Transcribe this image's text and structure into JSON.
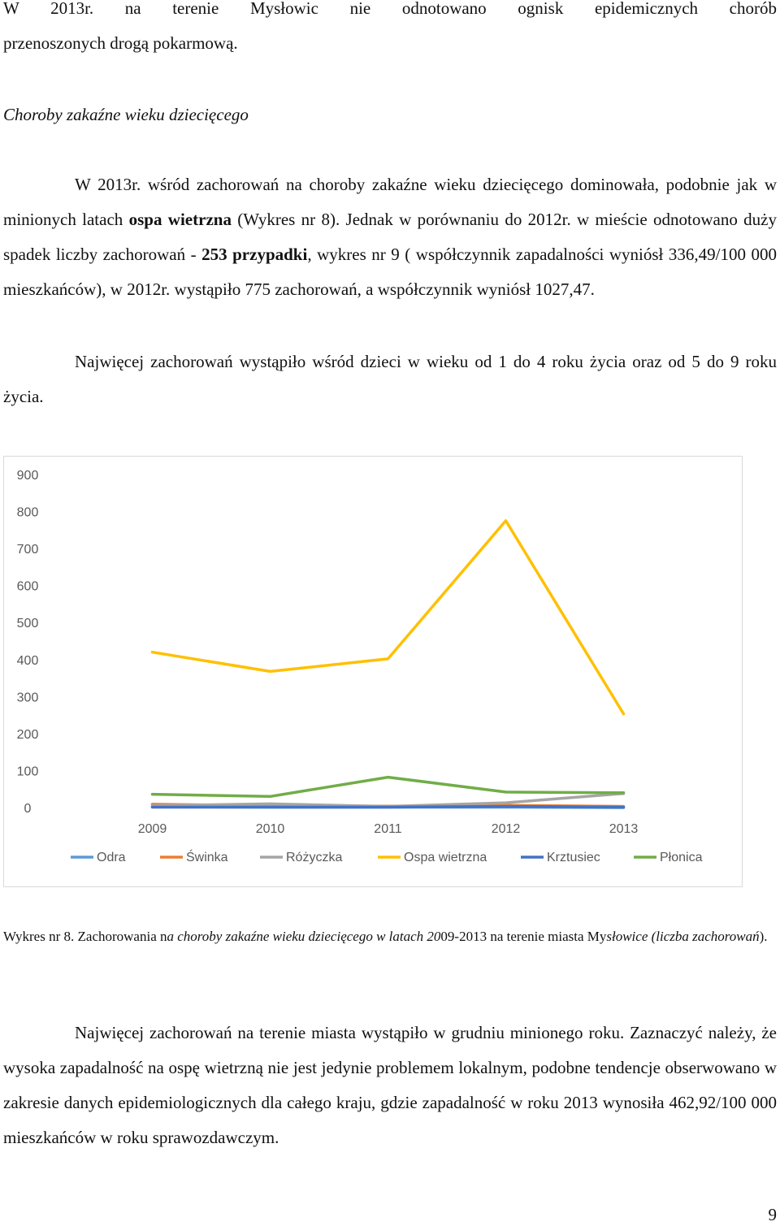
{
  "doc": {
    "p1_line1": "W  2013r.  na  terenie  Mysłowic  nie  odnotowano  ognisk  epidemicznych  chorób",
    "p1_line2": "przenoszonych drogą pokarmową.",
    "section_heading": "Choroby zakaźne wieku dziecięcego",
    "p2_seg1": "W 2013r. wśród zachorowań na choroby zakaźne wieku dziecięcego dominowała, podobnie jak w minionych latach ",
    "p2_bold1": "ospa wietrzna",
    "p2_seg2": " (Wykres nr 8). Jednak w porównaniu do 2012r. w mieście odnotowano duży spadek liczby zachorowań - ",
    "p2_bold2": "253 przypadki",
    "p2_seg3": ", wykres nr 9 ( współczynnik zapadalności  wyniósł 336,49/100 000 mieszkańców), w 2012r. wystąpiło 775 zachorowań,  a współczynnik wyniósł 1027,47.",
    "p3": "Najwięcej zachorowań wystąpiło wśród dzieci w wieku od 1 do 4 roku życia oraz od 5 do 9 roku  życia.",
    "caption_seg1": "Wykres nr 8. Zachorowania n",
    "caption_italic1": "a choroby zakaźne wieku dziecięcego w latach 20",
    "caption_seg2": "09-2013 na terenie miasta My",
    "caption_italic2": "słowice (liczba zachorowań",
    "caption_seg3": ").",
    "p4": "Najwięcej zachorowań na terenie miasta wystąpiło w grudniu minionego roku. Zaznaczyć należy, że wysoka zapadalność na ospę wietrzną nie jest jedynie problemem lokalnym, podobne tendencje obserwowano w zakresie danych epidemiologicznych dla całego kraju, gdzie  zapadalność w roku 2013 wynosiła 462,92/100 000 mieszkańców w roku sprawozdawczym.",
    "page_number": "9"
  },
  "chart_data": {
    "type": "line",
    "x": [
      "2009",
      "2010",
      "2011",
      "2012",
      "2013"
    ],
    "ylim": [
      0,
      900
    ],
    "yticks": [
      "0",
      "100",
      "200",
      "300",
      "400",
      "500",
      "600",
      "700",
      "800",
      "900"
    ],
    "grid": false,
    "legend_position": "bottom",
    "series": [
      {
        "name": "Odra",
        "color": "#5B9BD5",
        "values": [
          2,
          1,
          1,
          1,
          0
        ]
      },
      {
        "name": "Świnka",
        "color": "#ED7D31",
        "values": [
          9,
          5,
          4,
          6,
          3
        ]
      },
      {
        "name": "Różyczka",
        "color": "#A5A5A5",
        "values": [
          5,
          10,
          3,
          13,
          38
        ]
      },
      {
        "name": "Ospa wietrzna",
        "color": "#FFC000",
        "values": [
          420,
          368,
          402,
          775,
          253
        ]
      },
      {
        "name": "Krztusiec",
        "color": "#4472C4",
        "values": [
          1,
          1,
          1,
          3,
          1
        ]
      },
      {
        "name": "Płonica",
        "color": "#70AD47",
        "values": [
          36,
          30,
          82,
          42,
          40
        ]
      }
    ]
  }
}
